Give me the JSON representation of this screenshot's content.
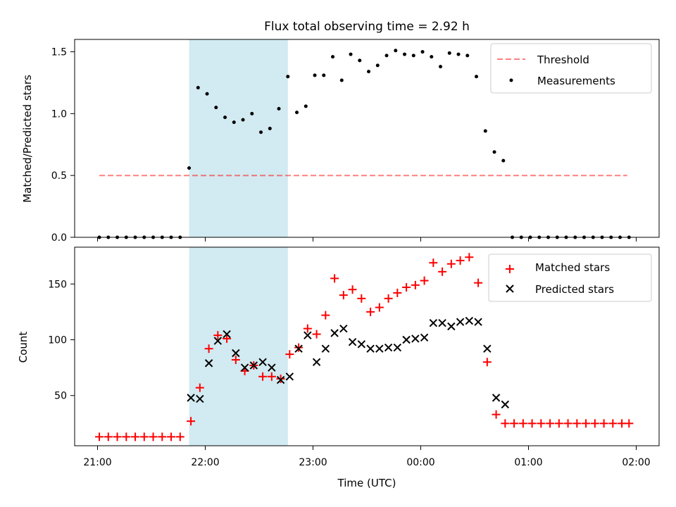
{
  "chart_data": {
    "type": "scatter",
    "title": "Flux total observing time = 2.92 h",
    "colors": {
      "shade": "#add8e6",
      "threshold": "#ff0000",
      "matched": "#ff0000",
      "predicted": "#000000",
      "measurements": "#000000"
    },
    "shaded_interval": [
      "21:51",
      "22:46"
    ],
    "top": {
      "ylabel": "Matched/Predicted stars",
      "ylim": [
        0,
        1.6
      ],
      "yticks": [
        "0.0",
        "0.5",
        "1.0",
        "1.5"
      ],
      "threshold": {
        "value": 0.5,
        "x_range": [
          "21:01",
          "01:55"
        ]
      },
      "legend": {
        "placement": "top-right",
        "entries": [
          "Threshold",
          "Measurements"
        ]
      },
      "measurements": {
        "x": [
          "21:01",
          "21:06",
          "21:11",
          "21:16",
          "21:21",
          "21:26",
          "21:31",
          "21:36",
          "21:41",
          "21:46",
          "21:51",
          "21:56",
          "22:01",
          "22:06",
          "22:11",
          "22:16",
          "22:21",
          "22:26",
          "22:31",
          "22:36",
          "22:41",
          "22:46",
          "22:51",
          "22:56",
          "23:01",
          "23:06",
          "23:11",
          "23:16",
          "23:21",
          "23:26",
          "23:31",
          "23:36",
          "23:41",
          "23:46",
          "23:51",
          "23:56",
          "00:01",
          "00:06",
          "00:11",
          "00:16",
          "00:21",
          "00:26",
          "00:31",
          "00:36",
          "00:41",
          "00:46",
          "00:51",
          "00:56",
          "01:01",
          "01:06",
          "01:11",
          "01:16",
          "01:21",
          "01:26",
          "01:31",
          "01:36",
          "01:41",
          "01:46",
          "01:51",
          "01:56"
        ],
        "y": [
          0,
          0,
          0,
          0,
          0,
          0,
          0,
          0,
          0,
          0,
          0.56,
          1.21,
          1.16,
          1.05,
          0.97,
          0.93,
          0.95,
          1.0,
          0.85,
          0.88,
          1.04,
          1.3,
          1.01,
          1.06,
          1.31,
          1.31,
          1.46,
          1.27,
          1.48,
          1.43,
          1.34,
          1.39,
          1.47,
          1.51,
          1.48,
          1.47,
          1.5,
          1.46,
          1.38,
          1.49,
          1.48,
          1.47,
          1.3,
          0.86,
          0.69,
          0.62,
          0,
          0,
          0,
          0,
          0,
          0,
          0,
          0,
          0,
          0,
          0,
          0,
          0,
          0
        ]
      }
    },
    "bottom": {
      "ylabel": "Count",
      "xlabel": "Time (UTC)",
      "ylim": [
        5,
        183
      ],
      "yticks": [
        "50",
        "100",
        "150"
      ],
      "xticks": [
        "21:00",
        "22:00",
        "23:00",
        "00:00",
        "01:00",
        "02:00"
      ],
      "legend": {
        "placement": "top-right",
        "entries": [
          "Matched stars",
          "Predicted stars"
        ]
      },
      "matched": {
        "x": [
          "21:01",
          "21:06",
          "21:11",
          "21:16",
          "21:21",
          "21:26",
          "21:31",
          "21:36",
          "21:41",
          "21:46",
          "21:52",
          "21:57",
          "22:02",
          "22:07",
          "22:12",
          "22:17",
          "22:22",
          "22:27",
          "22:32",
          "22:37",
          "22:42",
          "22:47",
          "22:52",
          "22:57",
          "23:02",
          "23:07",
          "23:12",
          "23:17",
          "23:22",
          "23:27",
          "23:32",
          "23:37",
          "23:42",
          "23:47",
          "23:52",
          "23:57",
          "00:02",
          "00:07",
          "00:12",
          "00:17",
          "00:22",
          "00:27",
          "00:32",
          "00:37",
          "00:42",
          "00:47",
          "00:52",
          "00:57",
          "01:02",
          "01:07",
          "01:12",
          "01:17",
          "01:22",
          "01:27",
          "01:32",
          "01:37",
          "01:42",
          "01:47",
          "01:52",
          "01:56"
        ],
        "y": [
          13,
          13,
          13,
          13,
          13,
          13,
          13,
          13,
          13,
          13,
          27,
          57,
          92,
          104,
          101,
          82,
          72,
          77,
          67,
          67,
          65,
          87,
          93,
          110,
          105,
          122,
          155,
          140,
          145,
          137,
          125,
          129,
          137,
          142,
          147,
          149,
          153,
          169,
          161,
          168,
          171,
          174,
          151,
          80,
          33,
          25,
          25,
          25,
          25,
          25,
          25,
          25,
          25,
          25,
          25,
          25,
          25,
          25,
          25,
          25
        ]
      },
      "predicted": {
        "x": [
          "21:52",
          "21:57",
          "22:02",
          "22:07",
          "22:12",
          "22:17",
          "22:22",
          "22:27",
          "22:32",
          "22:37",
          "22:42",
          "22:47",
          "22:52",
          "22:57",
          "23:02",
          "23:07",
          "23:12",
          "23:17",
          "23:22",
          "23:27",
          "23:32",
          "23:37",
          "23:42",
          "23:47",
          "23:52",
          "23:57",
          "00:02",
          "00:07",
          "00:12",
          "00:17",
          "00:22",
          "00:27",
          "00:32",
          "00:37",
          "00:42",
          "00:47"
        ],
        "y": [
          48,
          47,
          79,
          99,
          105,
          88,
          75,
          77,
          80,
          75,
          64,
          67,
          92,
          104,
          80,
          92,
          106,
          110,
          98,
          96,
          92,
          92,
          93,
          93,
          100,
          101,
          102,
          115,
          115,
          112,
          116,
          117,
          116,
          92,
          48,
          42
        ]
      }
    }
  }
}
